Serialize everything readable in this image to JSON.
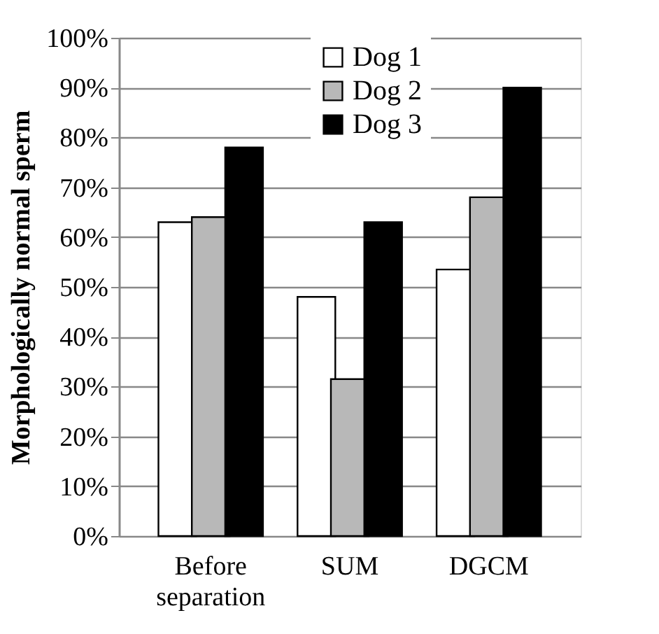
{
  "chart_data": {
    "type": "bar",
    "ylabel": "Morphologically normal sperm",
    "categories": [
      "Before separation",
      "SUM",
      "DGCM"
    ],
    "series": [
      {
        "name": "Dog 1",
        "color": "#ffffff",
        "values": [
          63,
          48,
          53.5
        ]
      },
      {
        "name": "Dog 2",
        "color": "#b8b8b8",
        "values": [
          64,
          31.5,
          68
        ]
      },
      {
        "name": "Dog 3",
        "color": "#000000",
        "values": [
          78,
          63,
          90
        ]
      }
    ],
    "ylim": [
      0,
      100
    ],
    "yticks": [
      {
        "value": 0,
        "label": "0%"
      },
      {
        "value": 10,
        "label": "10%"
      },
      {
        "value": 20,
        "label": "20%"
      },
      {
        "value": 30,
        "label": "30%"
      },
      {
        "value": 40,
        "label": "40%"
      },
      {
        "value": 50,
        "label": "50%"
      },
      {
        "value": 60,
        "label": "60%"
      },
      {
        "value": 70,
        "label": "70%"
      },
      {
        "value": 80,
        "label": "80%"
      },
      {
        "value": 90,
        "label": "90%"
      },
      {
        "value": 100,
        "label": "100%"
      }
    ],
    "grid": "y",
    "legend": "top right"
  }
}
